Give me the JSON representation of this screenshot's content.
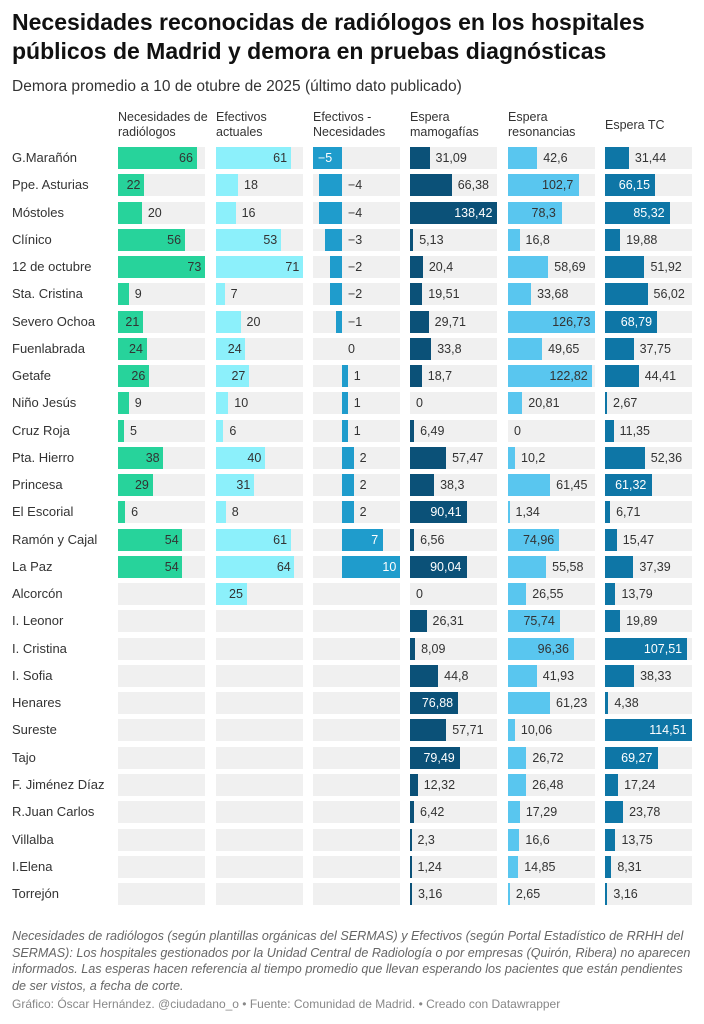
{
  "title": "Necesidades reconocidas de radiólogos en los hospitales públicos de Madrid y demora en pruebas diagnósticas",
  "subtitle": "Demora promedio a 10 de otubre de 2025 (último dato publicado)",
  "notes": "Necesidades de radiólogos (según plantillas orgánicas del SERMAS) y Efectivos (según Portal Estadístico de RRHH del SERMAS): Los hospitales gestionados por la Unidad Central de Radiología o por empresas (Quirón, Ribera) no aparecen informados. Las esperas hacen referencia al tiempo promedio que llevan esperando los pacientes que están pendientes de ser vistos, a fecha de corte.",
  "byline": "Gráfico: Óscar Hernández. @ciudadano_o • Fuente: Comunidad de Madrid.  • Creado con Datawrapper",
  "chart_data": {
    "type": "table",
    "columns": [
      {
        "label": "Necesidades de radiólogos",
        "color": "#27d39b",
        "text": "#333333"
      },
      {
        "label": "Efectivos actuales",
        "color": "#8cf0fb",
        "text": "#333333"
      },
      {
        "label": "Efectivos - Necesidades",
        "color": "#1f9ccc",
        "text": "#ffffff"
      },
      {
        "label": "Espera mamogafías",
        "color": "#0b5178",
        "text": "#ffffff"
      },
      {
        "label": "Espera resonancias",
        "color": "#59c6ef",
        "text": "#333333"
      },
      {
        "label": "Espera TC",
        "color": "#0e76a6",
        "text": "#ffffff"
      }
    ],
    "rows": [
      {
        "name": "G.Marañón",
        "values": [
          "66",
          "61",
          "−5",
          "31,09",
          "42,6",
          "31,44"
        ]
      },
      {
        "name": "Ppe. Asturias",
        "values": [
          "22",
          "18",
          "−4",
          "66,38",
          "102,7",
          "66,15"
        ]
      },
      {
        "name": "Móstoles",
        "values": [
          "20",
          "16",
          "−4",
          "138,42",
          "78,3",
          "85,32"
        ]
      },
      {
        "name": "Clínico",
        "values": [
          "56",
          "53",
          "−3",
          "5,13",
          "16,8",
          "19,88"
        ]
      },
      {
        "name": "12 de octubre",
        "values": [
          "73",
          "71",
          "−2",
          "20,4",
          "58,69",
          "51,92"
        ]
      },
      {
        "name": "Sta. Cristina",
        "values": [
          "9",
          "7",
          "−2",
          "19,51",
          "33,68",
          "56,02"
        ]
      },
      {
        "name": "Severo Ochoa",
        "values": [
          "21",
          "20",
          "−1",
          "29,71",
          "126,73",
          "68,79"
        ]
      },
      {
        "name": "Fuenlabrada",
        "values": [
          "24",
          "24",
          "0",
          "33,8",
          "49,65",
          "37,75"
        ]
      },
      {
        "name": "Getafe",
        "values": [
          "26",
          "27",
          "1",
          "18,7",
          "122,82",
          "44,41"
        ]
      },
      {
        "name": "Niño Jesús",
        "values": [
          "9",
          "10",
          "1",
          "0",
          "20,81",
          "2,67"
        ]
      },
      {
        "name": "Cruz Roja",
        "values": [
          "5",
          "6",
          "1",
          "6,49",
          "0",
          "11,35"
        ]
      },
      {
        "name": "Pta. Hierro",
        "values": [
          "38",
          "40",
          "2",
          "57,47",
          "10,2",
          "52,36"
        ]
      },
      {
        "name": "Princesa",
        "values": [
          "29",
          "31",
          "2",
          "38,3",
          "61,45",
          "61,32"
        ]
      },
      {
        "name": "El Escorial",
        "values": [
          "6",
          "8",
          "2",
          "90,41",
          "1,34",
          "6,71"
        ]
      },
      {
        "name": "Ramón y Cajal",
        "values": [
          "54",
          "61",
          "7",
          "6,56",
          "74,96",
          "15,47"
        ]
      },
      {
        "name": "La Paz",
        "values": [
          "54",
          "64",
          "10",
          "90,04",
          "55,58",
          "37,39"
        ]
      },
      {
        "name": "Alcorcón",
        "values": [
          null,
          "25",
          null,
          "0",
          "26,55",
          "13,79"
        ]
      },
      {
        "name": "I. Leonor",
        "values": [
          null,
          null,
          null,
          "26,31",
          "75,74",
          "19,89"
        ]
      },
      {
        "name": "I. Cristina",
        "values": [
          null,
          null,
          null,
          "8,09",
          "96,36",
          "107,51"
        ]
      },
      {
        "name": "I. Sofia",
        "values": [
          null,
          null,
          null,
          "44,8",
          "41,93",
          "38,33"
        ]
      },
      {
        "name": "Henares",
        "values": [
          null,
          null,
          null,
          "76,88",
          "61,23",
          "4,38"
        ]
      },
      {
        "name": "Sureste",
        "values": [
          null,
          null,
          null,
          "57,71",
          "10,06",
          "114,51"
        ]
      },
      {
        "name": "Tajo",
        "values": [
          null,
          null,
          null,
          "79,49",
          "26,72",
          "69,27"
        ]
      },
      {
        "name": "F. Jiménez Díaz",
        "values": [
          null,
          null,
          null,
          "12,32",
          "26,48",
          "17,24"
        ]
      },
      {
        "name": "R.Juan Carlos",
        "values": [
          null,
          null,
          null,
          "6,42",
          "17,29",
          "23,78"
        ]
      },
      {
        "name": "Villalba",
        "values": [
          null,
          null,
          null,
          "2,3",
          "16,6",
          "13,75"
        ]
      },
      {
        "name": "I.Elena",
        "values": [
          null,
          null,
          null,
          "1,24",
          "14,85",
          "8,31"
        ]
      },
      {
        "name": "Torrejón",
        "values": [
          null,
          null,
          null,
          "3,16",
          "2,65",
          "3,16"
        ]
      }
    ]
  }
}
